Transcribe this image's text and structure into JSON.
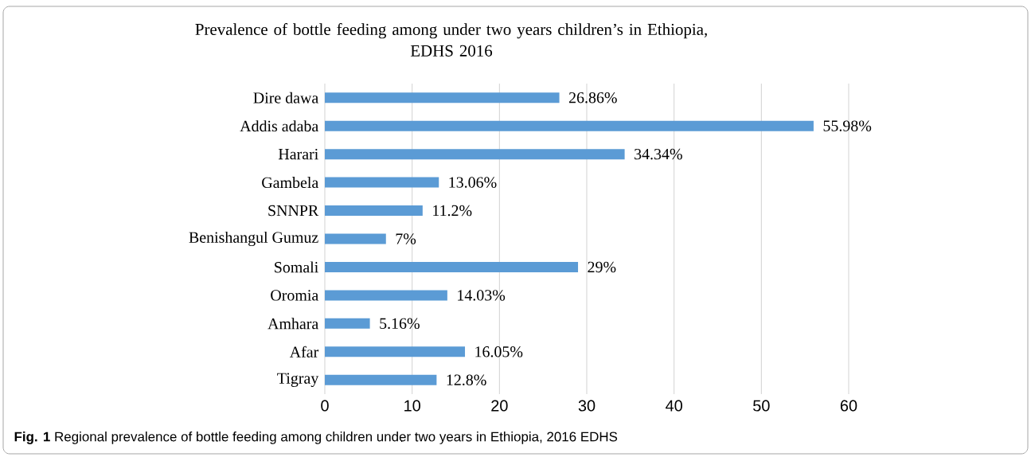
{
  "chart_data": {
    "type": "bar",
    "orientation": "horizontal",
    "title": "Prevalence of bottle feeding among under two years children’s in Ethiopia,\nEDHS 2016",
    "categories": [
      "Dire dawa",
      "Addis adaba",
      "Harari",
      "Gambela",
      "SNNPR",
      "Benishangul Gumuz",
      "Somali",
      "Oromia",
      "Amhara",
      "Afar",
      "Tigray"
    ],
    "values": [
      26.86,
      55.98,
      34.34,
      13.06,
      11.2,
      7,
      29,
      14.03,
      5.16,
      16.05,
      12.8
    ],
    "value_labels": [
      "26.86%",
      "55.98%",
      "34.34%",
      "13.06%",
      "11.2%",
      "7%",
      "29%",
      "14.03%",
      "5.16%",
      "16.05%",
      "12.8%"
    ],
    "color": "#5b9bd5",
    "xlim": [
      0,
      60
    ],
    "xticks": [
      0,
      10,
      20,
      30,
      40,
      50,
      60
    ],
    "grid": "x",
    "annotations": [
      "**Fig. 1** Regional prevalence of bottle feeding among children under two years in Ethiopia, 2016 EDHS"
    ]
  }
}
